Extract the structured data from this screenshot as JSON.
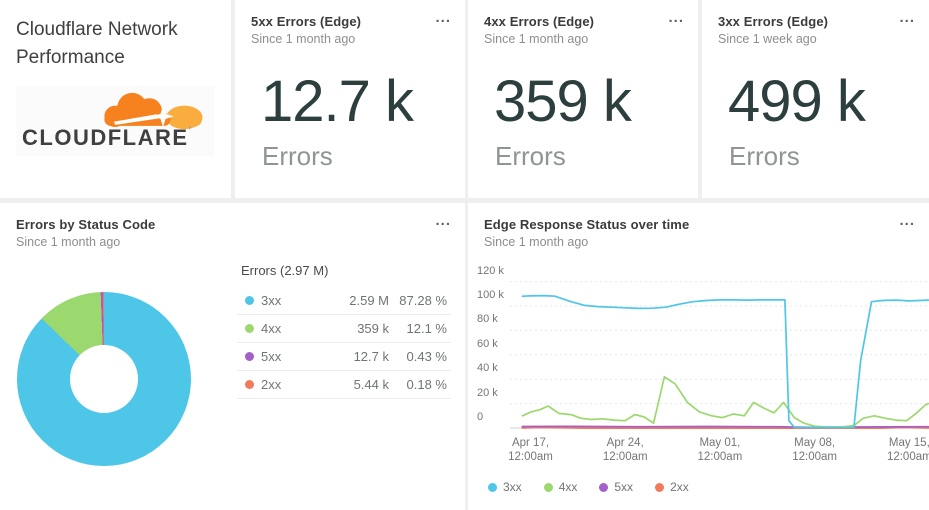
{
  "title_card": {
    "title": "Cloudflare Network Performance",
    "logo_text": "CLOUDFLARE"
  },
  "menu_glyph": "...",
  "billboards": [
    {
      "title": "5xx Errors (Edge)",
      "subtitle": "Since 1 month ago",
      "value": "12.7 k",
      "unit": "Errors"
    },
    {
      "title": "4xx Errors (Edge)",
      "subtitle": "Since 1 month ago",
      "value": "359 k",
      "unit": "Errors"
    },
    {
      "title": "3xx Errors (Edge)",
      "subtitle": "Since 1 week ago",
      "value": "499 k",
      "unit": "Errors"
    }
  ],
  "pie_card": {
    "title": "Errors by Status Code",
    "subtitle": "Since 1 month ago",
    "legend_title": "Errors (2.97 M)"
  },
  "line_card": {
    "title": "Edge Response Status over time",
    "subtitle": "Since 1 month ago"
  },
  "colors": {
    "status_3xx": "#4DC6E8",
    "status_4xx": "#9BD96E",
    "status_5xx": "#A45FC9",
    "status_2xx": "#F4795B",
    "cloudflare_orange": "#F6821F",
    "cloudflare_light_orange": "#FAAD3F",
    "big_value_text": "#2c3e3e"
  },
  "chart_data": [
    {
      "type": "pie",
      "title": "Errors by Status Code",
      "timeframe": "Since 1 month ago",
      "total_label": "Errors (2.97 M)",
      "donut": true,
      "slices": [
        {
          "name": "3xx",
          "display": "2.59 M",
          "pct": 87.28,
          "pct_label": "87.28 %",
          "color": "#4DC6E8"
        },
        {
          "name": "4xx",
          "display": "359 k",
          "pct": 12.1,
          "pct_label": "12.1 %",
          "color": "#9BD96E"
        },
        {
          "name": "5xx",
          "display": "12.7 k",
          "pct": 0.43,
          "pct_label": "0.43 %",
          "color": "#A45FC9"
        },
        {
          "name": "2xx",
          "display": "5.44 k",
          "pct": 0.18,
          "pct_label": "0.18 %",
          "color": "#F4795B"
        }
      ]
    },
    {
      "type": "line",
      "title": "Edge Response Status over time",
      "timeframe": "Since 1 month ago",
      "grid": "dashed-horizontal",
      "legend_position": "bottom",
      "y_axis": {
        "unit": "errors (k)",
        "range_k": [
          0,
          120
        ],
        "ticks": [
          {
            "v": 120,
            "label": "120 k"
          },
          {
            "v": 100,
            "label": "100 k"
          },
          {
            "v": 80,
            "label": "80 k"
          },
          {
            "v": 60,
            "label": "60 k"
          },
          {
            "v": 40,
            "label": "40 k"
          },
          {
            "v": 20,
            "label": "20 k"
          },
          {
            "v": 0,
            "label": "0"
          }
        ]
      },
      "x_axis": {
        "unit": "day (0 = Apr 15)",
        "ticks": [
          {
            "day": 2,
            "line1": "Apr 17,",
            "line2": "12:00am"
          },
          {
            "day": 9,
            "line1": "Apr 24,",
            "line2": "12:00am"
          },
          {
            "day": 16,
            "line1": "May 01,",
            "line2": "12:00am"
          },
          {
            "day": 23,
            "line1": "May 08,",
            "line2": "12:00am"
          },
          {
            "day": 30,
            "line1": "May 15,",
            "line2": "12:00am"
          }
        ]
      },
      "series": [
        {
          "name": "3xx",
          "color": "#4DC6E8",
          "points_day_valk": [
            [
              1.4,
              108
            ],
            [
              2,
              108.3
            ],
            [
              3,
              108.5
            ],
            [
              3.8,
              108
            ],
            [
              5,
              103.5
            ],
            [
              6,
              100.5
            ],
            [
              7,
              99.5
            ],
            [
              8,
              99
            ],
            [
              9,
              98.5
            ],
            [
              10,
              98
            ],
            [
              11,
              98.2
            ],
            [
              12,
              99
            ],
            [
              13,
              101.5
            ],
            [
              14,
              103.5
            ],
            [
              15,
              104.5
            ],
            [
              16,
              105
            ],
            [
              17,
              105
            ],
            [
              18,
              104.8
            ],
            [
              19,
              105
            ],
            [
              20,
              105
            ],
            [
              20.8,
              105
            ],
            [
              21.1,
              6
            ],
            [
              21.5,
              0.6
            ],
            [
              22.5,
              0.4
            ],
            [
              24,
              0.4
            ],
            [
              25.9,
              0.5
            ],
            [
              26.4,
              55
            ],
            [
              27.2,
              103.5
            ],
            [
              28,
              104.5
            ],
            [
              29,
              104.8
            ],
            [
              30,
              104.2
            ],
            [
              31.4,
              104.8
            ]
          ]
        },
        {
          "name": "4xx",
          "color": "#9BD96E",
          "points_day_valk": [
            [
              1.4,
              10
            ],
            [
              2,
              13
            ],
            [
              2.7,
              15
            ],
            [
              3.3,
              18
            ],
            [
              4.1,
              12
            ],
            [
              5,
              11
            ],
            [
              5.7,
              8
            ],
            [
              6.5,
              7
            ],
            [
              7.3,
              7.5
            ],
            [
              8.2,
              6.5
            ],
            [
              9,
              6
            ],
            [
              9.7,
              11
            ],
            [
              10.4,
              9
            ],
            [
              11.1,
              4
            ],
            [
              11.9,
              42
            ],
            [
              12.7,
              36
            ],
            [
              13.6,
              21
            ],
            [
              14.5,
              13
            ],
            [
              15.4,
              10
            ],
            [
              16.2,
              8.5
            ],
            [
              17,
              11.5
            ],
            [
              17.8,
              10
            ],
            [
              18.5,
              21
            ],
            [
              19.3,
              16
            ],
            [
              20,
              12.5
            ],
            [
              20.7,
              21
            ],
            [
              21.5,
              8.5
            ],
            [
              22.2,
              4
            ],
            [
              23,
              1.5
            ],
            [
              24,
              0.8
            ],
            [
              25,
              0.8
            ],
            [
              25.9,
              2
            ],
            [
              26.6,
              8
            ],
            [
              27.4,
              10
            ],
            [
              28.2,
              8
            ],
            [
              29,
              6.5
            ],
            [
              29.8,
              6
            ],
            [
              30.5,
              12
            ],
            [
              31.2,
              19
            ],
            [
              31.4,
              20
            ]
          ]
        },
        {
          "name": "5xx",
          "color": "#A45FC9",
          "points_day_valk": [
            [
              1.4,
              1.2
            ],
            [
              5,
              1.3
            ],
            [
              10,
              1.1
            ],
            [
              15,
              1.2
            ],
            [
              20,
              1.1
            ],
            [
              23,
              0.6
            ],
            [
              26,
              0.8
            ],
            [
              31.4,
              1.1
            ]
          ]
        },
        {
          "name": "2xx",
          "color": "#F4795B",
          "points_day_valk": [
            [
              1.4,
              0.2
            ],
            [
              2.5,
              0.6
            ],
            [
              4,
              0.4
            ],
            [
              6,
              0.1
            ],
            [
              15,
              0.1
            ],
            [
              22,
              0.05
            ],
            [
              28,
              0.1
            ],
            [
              29.5,
              0.6
            ],
            [
              31.4,
              0.2
            ]
          ]
        }
      ]
    }
  ]
}
